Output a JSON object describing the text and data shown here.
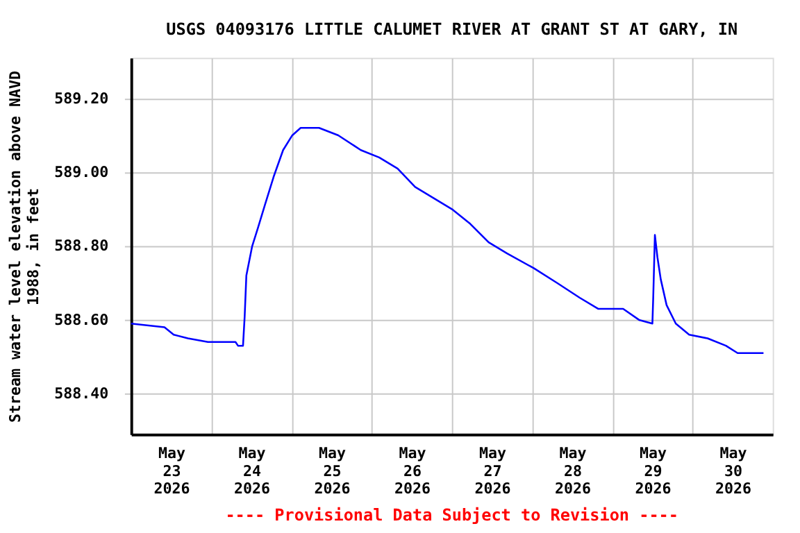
{
  "chart_data": {
    "type": "line",
    "title": "USGS 04093176 LITTLE CALUMET RIVER AT GRANT ST AT GARY, IN",
    "ylabel": "Stream water level elevation above NAVD 1988, in feet",
    "annotations": [
      "---- Provisional Data Subject to Revision ----"
    ],
    "x": [
      "2026-05-23T00:00",
      "2026-05-23T10:00",
      "2026-05-23T12:45",
      "2026-05-23T17:00",
      "2026-05-23T23:00",
      "2026-05-24T07:15",
      "2026-05-24T08:00",
      "2026-05-24T09:30",
      "2026-05-24T10:00",
      "2026-05-24T10:30",
      "2026-05-24T12:15",
      "2026-05-24T14:00",
      "2026-05-24T16:00",
      "2026-05-24T18:45",
      "2026-05-24T21:30",
      "2026-05-25T00:15",
      "2026-05-25T02:45",
      "2026-05-25T08:15",
      "2026-05-25T14:00",
      "2026-05-25T20:45",
      "2026-05-26T02:15",
      "2026-05-26T07:45",
      "2026-05-26T13:00",
      "2026-05-26T18:30",
      "2026-05-27T00:00",
      "2026-05-27T05:30",
      "2026-05-27T11:00",
      "2026-05-27T16:30",
      "2026-05-28T00:30",
      "2026-05-28T07:30",
      "2026-05-28T14:15",
      "2026-05-28T19:45",
      "2026-05-29T03:15",
      "2026-05-29T08:00",
      "2026-05-29T12:00",
      "2026-05-29T12:15",
      "2026-05-29T12:45",
      "2026-05-29T13:30",
      "2026-05-29T14:30",
      "2026-05-29T16:15",
      "2026-05-29T19:00",
      "2026-05-29T23:00",
      "2026-05-30T04:30",
      "2026-05-30T10:00",
      "2026-05-30T13:30",
      "2026-05-30T21:15"
    ],
    "series": [
      {
        "color": "#0000ff",
        "values": [
          588.59,
          588.58,
          588.56,
          588.55,
          588.54,
          588.54,
          588.53,
          588.53,
          588.61,
          588.72,
          588.8,
          588.85,
          588.91,
          588.99,
          589.06,
          589.1,
          589.12,
          589.12,
          589.1,
          589.06,
          589.04,
          589.01,
          588.96,
          588.93,
          588.9,
          588.86,
          588.81,
          588.78,
          588.74,
          588.7,
          588.66,
          588.63,
          588.63,
          588.6,
          588.59,
          588.66,
          588.83,
          588.77,
          588.71,
          588.64,
          588.59,
          588.56,
          588.55,
          588.53,
          588.51,
          588.51
        ]
      }
    ],
    "xlim": [
      "2026-05-23T00:00",
      "2026-05-31T00:00"
    ],
    "xticks": [
      {
        "value": "2026-05-23T12:00",
        "label": "May\n23\n2026"
      },
      {
        "value": "2026-05-24T00:00",
        "label": null
      },
      {
        "value": "2026-05-24T12:00",
        "label": "May\n24\n2026"
      },
      {
        "value": "2026-05-25T00:00",
        "label": null
      },
      {
        "value": "2026-05-25T12:00",
        "label": "May\n25\n2026"
      },
      {
        "value": "2026-05-26T00:00",
        "label": null
      },
      {
        "value": "2026-05-26T12:00",
        "label": "May\n26\n2026"
      },
      {
        "value": "2026-05-27T00:00",
        "label": null
      },
      {
        "value": "2026-05-27T12:00",
        "label": "May\n27\n2026"
      },
      {
        "value": "2026-05-28T00:00",
        "label": null
      },
      {
        "value": "2026-05-28T12:00",
        "label": "May\n28\n2026"
      },
      {
        "value": "2026-05-29T00:00",
        "label": null
      },
      {
        "value": "2026-05-29T12:00",
        "label": "May\n29\n2026"
      },
      {
        "value": "2026-05-30T00:00",
        "label": null
      },
      {
        "value": "2026-05-30T12:00",
        "label": "May\n30\n2026"
      }
    ],
    "ylim": [
      588.29,
      589.31
    ],
    "yticks": [
      {
        "value": 588.4,
        "label": "588.40"
      },
      {
        "value": 588.6,
        "label": "588.60"
      },
      {
        "value": 588.8,
        "label": "588.80"
      },
      {
        "value": 589.0,
        "label": "589.00"
      },
      {
        "value": 589.2,
        "label": "589.20"
      }
    ],
    "grid": true,
    "marker": "none",
    "line_style": "solid"
  }
}
